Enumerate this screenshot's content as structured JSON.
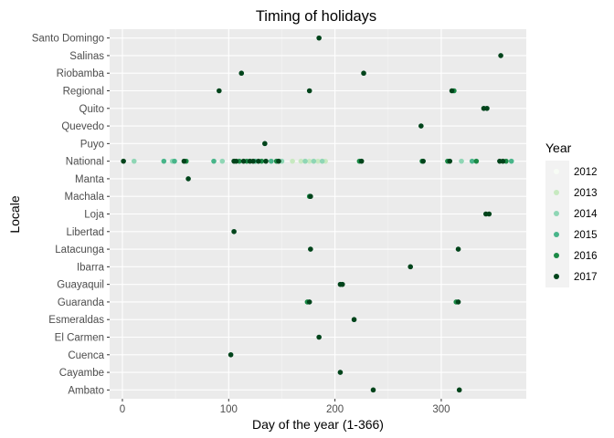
{
  "chart_data": {
    "type": "scatter",
    "title": "Timing of holidays",
    "xlabel": "Day of the year (1-366)",
    "ylabel": "Locale",
    "xlim": [
      -12,
      380
    ],
    "xticks": [
      0,
      100,
      200,
      300
    ],
    "grid": true,
    "legend_placement": "right",
    "legend_title": "Year",
    "categories": [
      "Santo Domingo",
      "Salinas",
      "Riobamba",
      "Regional",
      "Quito",
      "Quevedo",
      "Puyo",
      "National",
      "Manta",
      "Machala",
      "Loja",
      "Libertad",
      "Latacunga",
      "Ibarra",
      "Guayaquil",
      "Guaranda",
      "Esmeraldas",
      "El Carmen",
      "Cuenca",
      "Cayambe",
      "Ambato"
    ],
    "series": [
      {
        "name": "2012",
        "color": "#f7fcf5",
        "points": []
      },
      {
        "name": "2013",
        "color": "#c7e9c0",
        "points": [
          {
            "x": 160,
            "y": "National"
          },
          {
            "x": 168,
            "y": "National"
          },
          {
            "x": 176,
            "y": "National"
          },
          {
            "x": 184,
            "y": "National"
          },
          {
            "x": 191,
            "y": "National"
          }
        ]
      },
      {
        "name": "2014",
        "color": "#8fd6b5",
        "points": [
          {
            "x": 11,
            "y": "National"
          },
          {
            "x": 47,
            "y": "National"
          },
          {
            "x": 94,
            "y": "National"
          },
          {
            "x": 150,
            "y": "National"
          },
          {
            "x": 172,
            "y": "National"
          },
          {
            "x": 180,
            "y": "National"
          },
          {
            "x": 188,
            "y": "National"
          },
          {
            "x": 319,
            "y": "National"
          }
        ]
      },
      {
        "name": "2015",
        "color": "#48b58a",
        "points": [
          {
            "x": 39,
            "y": "National"
          },
          {
            "x": 49,
            "y": "National"
          },
          {
            "x": 86,
            "y": "National"
          },
          {
            "x": 125,
            "y": "National"
          },
          {
            "x": 140,
            "y": "National"
          },
          {
            "x": 329,
            "y": "National"
          },
          {
            "x": 366,
            "y": "National"
          }
        ]
      },
      {
        "name": "2016",
        "color": "#1b8a46",
        "points": [
          {
            "x": 60,
            "y": "National"
          },
          {
            "x": 110,
            "y": "National"
          },
          {
            "x": 117,
            "y": "National"
          },
          {
            "x": 131,
            "y": "National"
          },
          {
            "x": 145,
            "y": "National"
          },
          {
            "x": 223,
            "y": "National"
          },
          {
            "x": 282,
            "y": "National"
          },
          {
            "x": 306,
            "y": "National"
          },
          {
            "x": 333,
            "y": "National"
          },
          {
            "x": 361,
            "y": "National"
          },
          {
            "x": 176,
            "y": "Machala"
          },
          {
            "x": 174,
            "y": "Guaranda"
          },
          {
            "x": 314,
            "y": "Guaranda"
          },
          {
            "x": 312,
            "y": "Regional"
          }
        ]
      },
      {
        "name": "2017",
        "color": "#00441b",
        "points": [
          {
            "x": 185,
            "y": "Santo Domingo"
          },
          {
            "x": 356,
            "y": "Salinas"
          },
          {
            "x": 112,
            "y": "Riobamba"
          },
          {
            "x": 227,
            "y": "Riobamba"
          },
          {
            "x": 91,
            "y": "Regional"
          },
          {
            "x": 176,
            "y": "Regional"
          },
          {
            "x": 310,
            "y": "Regional"
          },
          {
            "x": 340,
            "y": "Quito"
          },
          {
            "x": 343,
            "y": "Quito"
          },
          {
            "x": 281,
            "y": "Quevedo"
          },
          {
            "x": 134,
            "y": "Puyo"
          },
          {
            "x": 1,
            "y": "National"
          },
          {
            "x": 58,
            "y": "National"
          },
          {
            "x": 105,
            "y": "National"
          },
          {
            "x": 107,
            "y": "National"
          },
          {
            "x": 114,
            "y": "National"
          },
          {
            "x": 120,
            "y": "National"
          },
          {
            "x": 123,
            "y": "National"
          },
          {
            "x": 128,
            "y": "National"
          },
          {
            "x": 135,
            "y": "National"
          },
          {
            "x": 147,
            "y": "National"
          },
          {
            "x": 225,
            "y": "National"
          },
          {
            "x": 283,
            "y": "National"
          },
          {
            "x": 308,
            "y": "National"
          },
          {
            "x": 355,
            "y": "National"
          },
          {
            "x": 358,
            "y": "National"
          },
          {
            "x": 62,
            "y": "Manta"
          },
          {
            "x": 177,
            "y": "Machala"
          },
          {
            "x": 342,
            "y": "Loja"
          },
          {
            "x": 345,
            "y": "Loja"
          },
          {
            "x": 105,
            "y": "Libertad"
          },
          {
            "x": 177,
            "y": "Latacunga"
          },
          {
            "x": 316,
            "y": "Latacunga"
          },
          {
            "x": 271,
            "y": "Ibarra"
          },
          {
            "x": 205,
            "y": "Guayaquil"
          },
          {
            "x": 207,
            "y": "Guayaquil"
          },
          {
            "x": 176,
            "y": "Guaranda"
          },
          {
            "x": 316,
            "y": "Guaranda"
          },
          {
            "x": 218,
            "y": "Esmeraldas"
          },
          {
            "x": 185,
            "y": "El Carmen"
          },
          {
            "x": 102,
            "y": "Cuenca"
          },
          {
            "x": 205,
            "y": "Cayambe"
          },
          {
            "x": 236,
            "y": "Ambato"
          },
          {
            "x": 317,
            "y": "Ambato"
          }
        ]
      }
    ]
  }
}
